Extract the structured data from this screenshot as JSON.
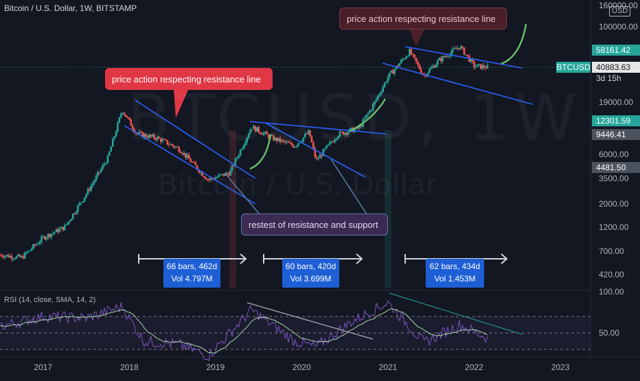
{
  "header": {
    "title": "Bitcoin / U.S. Dollar, 1W, BITSTAMP",
    "rsi_label": "RSI (14, close, SMA, 14, 2)",
    "currency_box": "USD"
  },
  "watermark": {
    "symbol": "BTCUSD, 1W",
    "name": "Bitcoin / U.S. Dollar"
  },
  "annotations": {
    "callout_left": "price action respecting resistance line",
    "callout_right": "price action respecting resistance line",
    "callout_middle": "restest of resistance and support"
  },
  "price_tags": {
    "current_price": "58161.42",
    "ticker": "BTCUSD",
    "last_price": "40883.63",
    "countdown": "3d 15h",
    "tag_12301": "12301.59",
    "tag_9446": "9446.41",
    "tag_4481": "4481.50"
  },
  "colors": {
    "background": "#131722",
    "candle_up": "#26a69a",
    "candle_down": "#ef5350",
    "trendline": "#2962ff",
    "projection": "#66bb6a",
    "rsi_line": "#7e57c2",
    "rsi_ma": "#a5d6a7"
  },
  "chart_data": {
    "type": "candlestick",
    "title": "Bitcoin / U.S. Dollar, 1W, BITSTAMP",
    "y_scale": "log",
    "y_ticks": [
      "160000.00",
      "100000.00",
      "19000.00",
      "6000.00",
      "3500.00",
      "2000.00",
      "1200.00",
      "700.00",
      "420.00"
    ],
    "x_ticks": [
      "2017",
      "2018",
      "2019",
      "2020",
      "2021",
      "2022",
      "2023"
    ],
    "rsi_ticks": [
      "100.00",
      "50.00"
    ],
    "approx_weekly_close": [
      {
        "x": "2016-07",
        "y": 650
      },
      {
        "x": "2016-10",
        "y": 610
      },
      {
        "x": "2017-01",
        "y": 950
      },
      {
        "x": "2017-04",
        "y": 1200
      },
      {
        "x": "2017-07",
        "y": 2500
      },
      {
        "x": "2017-10",
        "y": 5500
      },
      {
        "x": "2017-12",
        "y": 16000
      },
      {
        "x": "2018-02",
        "y": 9500
      },
      {
        "x": "2018-05",
        "y": 8500
      },
      {
        "x": "2018-08",
        "y": 6700
      },
      {
        "x": "2018-11",
        "y": 4000
      },
      {
        "x": "2018-12",
        "y": 3400
      },
      {
        "x": "2019-03",
        "y": 4000
      },
      {
        "x": "2019-06",
        "y": 11000
      },
      {
        "x": "2019-09",
        "y": 8500
      },
      {
        "x": "2019-12",
        "y": 7200
      },
      {
        "x": "2020-02",
        "y": 9800
      },
      {
        "x": "2020-03",
        "y": 5200
      },
      {
        "x": "2020-06",
        "y": 9300
      },
      {
        "x": "2020-09",
        "y": 10700
      },
      {
        "x": "2020-11",
        "y": 18000
      },
      {
        "x": "2021-01",
        "y": 33000
      },
      {
        "x": "2021-04",
        "y": 58000
      },
      {
        "x": "2021-06",
        "y": 34000
      },
      {
        "x": "2021-08",
        "y": 47000
      },
      {
        "x": "2021-11",
        "y": 65000
      },
      {
        "x": "2022-01",
        "y": 42000
      },
      {
        "x": "2022-03",
        "y": 40883
      }
    ],
    "approx_rsi": [
      {
        "x": "2016-07",
        "y": 58
      },
      {
        "x": "2017-01",
        "y": 70
      },
      {
        "x": "2017-07",
        "y": 68
      },
      {
        "x": "2017-12",
        "y": 82
      },
      {
        "x": "2018-03",
        "y": 40
      },
      {
        "x": "2018-08",
        "y": 36
      },
      {
        "x": "2018-12",
        "y": 22
      },
      {
        "x": "2019-06",
        "y": 78
      },
      {
        "x": "2019-12",
        "y": 40
      },
      {
        "x": "2020-03",
        "y": 33
      },
      {
        "x": "2020-08",
        "y": 64
      },
      {
        "x": "2021-01",
        "y": 87
      },
      {
        "x": "2021-06",
        "y": 38
      },
      {
        "x": "2021-11",
        "y": 60
      },
      {
        "x": "2022-03",
        "y": 43
      }
    ],
    "measurements": [
      {
        "bars": "66 bars, 462d",
        "vol": "Vol 4.797M"
      },
      {
        "bars": "60 bars, 420d",
        "vol": "Vol 3.699M"
      },
      {
        "bars": "62 bars, 434d",
        "vol": "Vol 1.453M"
      }
    ]
  }
}
